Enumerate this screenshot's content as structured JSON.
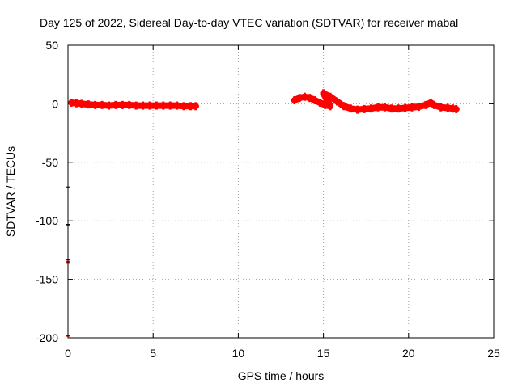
{
  "chart_data": {
    "type": "scatter",
    "title": "Day 125 of 2022, Sidereal Day-to-day VTEC variation (SDTVAR) for receiver mabal",
    "xlabel": "GPS time / hours",
    "ylabel": "SDTVAR / TECUs",
    "xlim": [
      0,
      25
    ],
    "ylim": [
      -200,
      50
    ],
    "xticks": [
      0,
      5,
      10,
      15,
      20,
      25
    ],
    "yticks": [
      -200,
      -150,
      -100,
      -50,
      0,
      50
    ],
    "grid": true,
    "marker": "error-bar cross",
    "series": [
      {
        "name": "SDTVAR",
        "color": "#ff0000",
        "points": [
          [
            0.2,
            1.0
          ],
          [
            0.5,
            0.5
          ],
          [
            0.8,
            0.0
          ],
          [
            1.2,
            -0.5
          ],
          [
            1.6,
            -1.0
          ],
          [
            2.0,
            -1.0
          ],
          [
            2.4,
            -1.5
          ],
          [
            2.8,
            -1.0
          ],
          [
            3.2,
            -1.0
          ],
          [
            3.6,
            -1.0
          ],
          [
            4.0,
            -1.5
          ],
          [
            4.4,
            -1.5
          ],
          [
            4.8,
            -1.5
          ],
          [
            5.2,
            -1.5
          ],
          [
            5.6,
            -1.5
          ],
          [
            6.0,
            -1.5
          ],
          [
            6.4,
            -1.5
          ],
          [
            6.8,
            -2.0
          ],
          [
            7.2,
            -2.0
          ],
          [
            7.5,
            -2.0
          ],
          [
            13.3,
            3.0
          ],
          [
            13.6,
            5.0
          ],
          [
            13.9,
            6.0
          ],
          [
            14.2,
            5.0
          ],
          [
            14.5,
            3.0
          ],
          [
            14.8,
            1.0
          ],
          [
            15.1,
            -1.0
          ],
          [
            15.4,
            -2.0
          ],
          [
            15.0,
            9.0
          ],
          [
            15.4,
            6.0
          ],
          [
            15.8,
            2.0
          ],
          [
            16.2,
            -2.0
          ],
          [
            16.6,
            -4.0
          ],
          [
            17.0,
            -5.0
          ],
          [
            17.4,
            -4.5
          ],
          [
            17.8,
            -4.0
          ],
          [
            18.2,
            -3.0
          ],
          [
            18.6,
            -3.0
          ],
          [
            19.0,
            -4.0
          ],
          [
            19.4,
            -4.0
          ],
          [
            19.8,
            -3.5
          ],
          [
            20.2,
            -3.0
          ],
          [
            20.6,
            -2.5
          ],
          [
            21.0,
            -1.0
          ],
          [
            21.3,
            1.0
          ],
          [
            21.5,
            -1.0
          ],
          [
            21.9,
            -3.0
          ],
          [
            22.3,
            -3.5
          ],
          [
            22.6,
            -4.0
          ],
          [
            22.8,
            -4.5
          ],
          [
            0.0,
            -71.0
          ],
          [
            0.0,
            -103.0
          ],
          [
            0.0,
            -133.0
          ],
          [
            0.0,
            -135.0
          ],
          [
            0.0,
            -198.0
          ]
        ]
      }
    ]
  }
}
